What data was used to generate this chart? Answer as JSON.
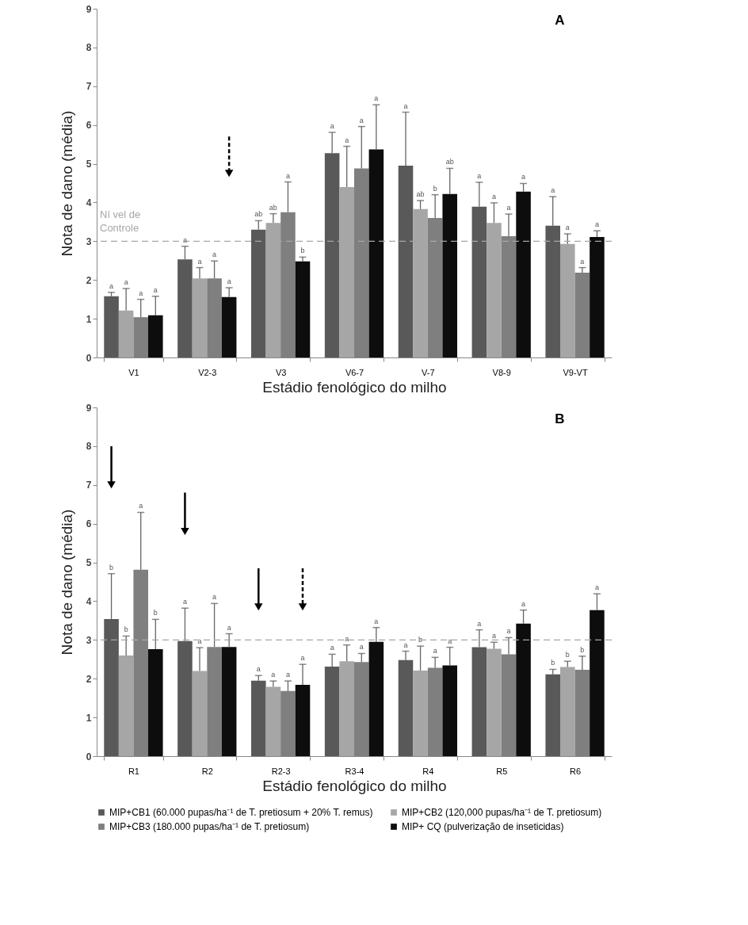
{
  "chart_data": [
    {
      "type": "bar",
      "title": "A",
      "xlabel": "Estádio fenológico do milho",
      "ylabel": "Nota de dano (média)",
      "categories": [
        "V1",
        "V2-3",
        "V3",
        "V6-7",
        "V-7",
        "V8-9",
        "V9-VT"
      ],
      "ylim": [
        0,
        9
      ],
      "yticks": [
        0,
        1,
        2,
        3,
        4,
        5,
        6,
        7,
        8,
        9
      ],
      "ref_lines": [
        {
          "axis": "y",
          "value": 3,
          "label": "Ní vel de Controle",
          "color": "#a6a6a6",
          "line_style": "dashed"
        }
      ],
      "series": [
        {
          "color": "#595959",
          "values": [
            1.58,
            2.53,
            3.3,
            5.27,
            4.95,
            3.89,
            3.4
          ],
          "errors": [
            0.1,
            0.34,
            0.23,
            0.54,
            1.38,
            0.63,
            0.75
          ]
        },
        {
          "color": "#a6a6a6",
          "values": [
            1.21,
            2.04,
            3.47,
            4.4,
            3.83,
            3.47,
            2.93
          ],
          "errors": [
            0.57,
            0.28,
            0.24,
            1.05,
            0.22,
            0.52,
            0.26
          ]
        },
        {
          "color": "#7f7f7f",
          "values": [
            1.04,
            2.04,
            3.75,
            4.88,
            3.6,
            3.13,
            2.19
          ],
          "errors": [
            0.46,
            0.45,
            0.78,
            1.08,
            0.6,
            0.57,
            0.13
          ]
        },
        {
          "color": "#0d0d0d",
          "values": [
            1.09,
            1.56,
            2.48,
            5.37,
            4.22,
            4.28,
            3.11
          ],
          "errors": [
            0.49,
            0.24,
            0.11,
            1.15,
            0.66,
            0.21,
            0.16
          ]
        }
      ],
      "annotations": [
        "a",
        "a",
        "a",
        "a",
        "a",
        "a",
        "a",
        "a",
        "ab",
        "ab",
        "a",
        "b",
        "a",
        "a",
        "a",
        "a",
        "a",
        "ab",
        "b",
        "ab",
        "a",
        "a",
        "a",
        "a",
        "a",
        "a",
        "a",
        "a"
      ]
    },
    {
      "type": "bar",
      "title": "B",
      "xlabel": "Estádio fenológico do milho",
      "ylabel": "Nota de dano (média)",
      "categories": [
        "R1",
        "R2",
        "R2-3",
        "R3-4",
        "R4",
        "R5",
        "R6"
      ],
      "ylim": [
        0,
        9
      ],
      "yticks": [
        0,
        1,
        2,
        3,
        4,
        5,
        6,
        7,
        8,
        9
      ],
      "legend": "bottom",
      "ref_lines": [
        {
          "axis": "y",
          "value": 3,
          "color": "#a6a6a6",
          "line_style": "dashed"
        }
      ],
      "series": [
        {
          "name": "MIP+CB1 (60.000 pupas/ha⁻¹ de T. pretiosum + 20% T. remus)",
          "color": "#595959",
          "values": [
            3.54,
            2.97,
            1.95,
            2.31,
            2.48,
            2.81,
            2.11
          ],
          "errors": [
            1.17,
            0.85,
            0.13,
            0.32,
            0.23,
            0.45,
            0.13
          ]
        },
        {
          "name": "MIP+CB2 (120,000 pupas/ha⁻¹ de T. pretiosum)",
          "color": "#a6a6a6",
          "values": [
            2.6,
            2.2,
            1.79,
            2.45,
            2.21,
            2.77,
            2.3
          ],
          "errors": [
            0.5,
            0.6,
            0.15,
            0.42,
            0.63,
            0.17,
            0.15
          ]
        },
        {
          "name": "MIP+CB3 (180.000 pupas/ha⁻¹ de T. pretiosum)",
          "color": "#7f7f7f",
          "values": [
            4.81,
            2.82,
            1.68,
            2.43,
            2.28,
            2.63,
            2.23
          ],
          "errors": [
            1.48,
            1.12,
            0.26,
            0.22,
            0.27,
            0.43,
            0.35
          ]
        },
        {
          "name": "MIP+ CQ (pulverização de inseticidas)",
          "color": "#0d0d0d",
          "values": [
            2.76,
            2.82,
            1.84,
            2.95,
            2.34,
            3.42,
            3.77
          ],
          "errors": [
            0.77,
            0.34,
            0.53,
            0.37,
            0.47,
            0.35,
            0.42
          ]
        }
      ],
      "annotations": [
        "b",
        "b",
        "a",
        "b",
        "a",
        "a",
        "a",
        "a",
        "a",
        "a",
        "a",
        "a",
        "a",
        "a",
        "a",
        "a",
        "a",
        "b",
        "a",
        "a",
        "a",
        "a",
        "a",
        "a",
        "b",
        "b",
        "b",
        "a"
      ]
    }
  ]
}
